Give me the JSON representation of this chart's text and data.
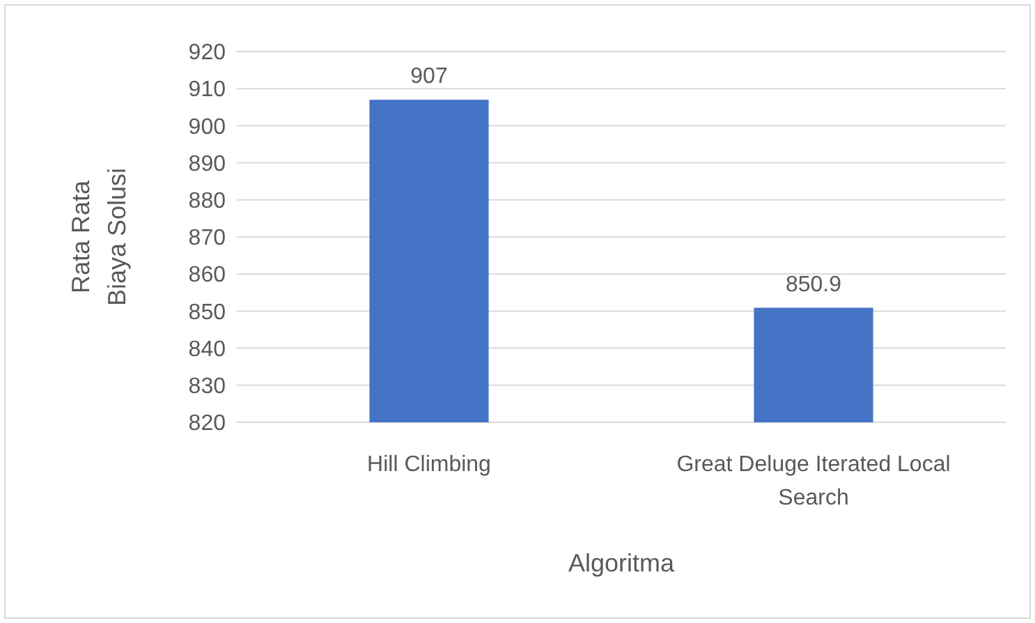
{
  "chart_data": {
    "type": "bar",
    "xlabel": "Algoritma",
    "ylabel": "Rata Rata Biaya Solusi",
    "categories": [
      "Hill Climbing",
      "Great Deluge Iterated Local Search"
    ],
    "values": [
      907,
      850.9
    ],
    "color": "#4472c4",
    "ylim": [
      820,
      920
    ],
    "yticks": [
      820,
      830,
      840,
      850,
      860,
      870,
      880,
      890,
      900,
      910,
      920
    ],
    "grid": "y",
    "data_labels": true
  }
}
